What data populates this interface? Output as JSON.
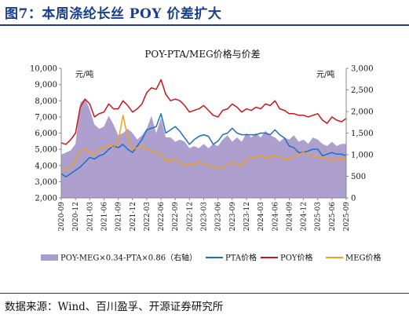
{
  "figure": {
    "title": "图7：本周涤纶长丝 POY 价差扩大",
    "source": "数据来源：Wind、百川盈孚、开源证券研究所"
  },
  "chart_data": {
    "type": "line",
    "title": "POY-PTA/MEG价格与价差",
    "left_unit": "元/吨",
    "right_unit": "元/吨",
    "y_left": {
      "min": 2000,
      "max": 10000,
      "ticks": [
        "2,000",
        "3,000",
        "4,000",
        "5,000",
        "6,000",
        "7,000",
        "8,000",
        "9,000",
        "10,000"
      ]
    },
    "y_right": {
      "min": 0,
      "max": 3000,
      "ticks": [
        "0",
        "500",
        "1,000",
        "1,500",
        "2,000",
        "2,500",
        "3,000"
      ]
    },
    "x_ticks": [
      "2020-09",
      "2020-12",
      "2021-03",
      "2021-06",
      "2021-09",
      "2021-12",
      "2022-03",
      "2022-06",
      "2022-09",
      "2022-12",
      "2023-03",
      "2023-06",
      "2023-09",
      "2023-12",
      "2024-03",
      "2024-06",
      "2024-09",
      "2024-12",
      "2025-03",
      "2025-06",
      "2025-09"
    ],
    "grid": false,
    "legend_position": "bottom",
    "colors": {
      "spread": "#a99bcb",
      "pta": "#1f6fc0",
      "poy": "#c8161d",
      "meg": "#f2a01c"
    },
    "series": [
      {
        "name": "POY-MEG×0.34-PTA×0.86（右轴）",
        "axis": "right",
        "style": "area",
        "x": [
          "2020-09",
          "2020-10",
          "2020-11",
          "2020-12",
          "2021-01",
          "2021-02",
          "2021-03",
          "2021-04",
          "2021-05",
          "2021-06",
          "2021-07",
          "2021-08",
          "2021-09",
          "2021-10",
          "2021-11",
          "2021-12",
          "2022-01",
          "2022-02",
          "2022-03",
          "2022-04",
          "2022-05",
          "2022-06",
          "2022-07",
          "2022-08",
          "2022-09",
          "2022-10",
          "2022-11",
          "2022-12",
          "2023-01",
          "2023-02",
          "2023-03",
          "2023-04",
          "2023-05",
          "2023-06",
          "2023-07",
          "2023-08",
          "2023-09",
          "2023-10",
          "2023-11",
          "2023-12",
          "2024-01",
          "2024-02",
          "2024-03",
          "2024-04",
          "2024-05",
          "2024-06",
          "2024-07",
          "2024-08",
          "2024-09",
          "2024-10",
          "2024-11",
          "2024-12",
          "2025-01",
          "2025-02",
          "2025-03",
          "2025-04",
          "2025-05",
          "2025-06",
          "2025-07",
          "2025-08",
          "2025-09"
        ],
        "values": [
          1000,
          1050,
          1100,
          1250,
          2200,
          2300,
          2050,
          1700,
          1600,
          1650,
          1900,
          1700,
          1450,
          1500,
          1600,
          1500,
          1350,
          1450,
          1600,
          1900,
          1500,
          1850,
          1400,
          1400,
          1300,
          1350,
          1300,
          1150,
          1200,
          1150,
          1250,
          1150,
          1250,
          1200,
          1350,
          1450,
          1300,
          1400,
          1300,
          1500,
          1400,
          1500,
          1400,
          1550,
          1450,
          1400,
          1300,
          1400,
          1350,
          1450,
          1300,
          1350,
          1250,
          1400,
          1350,
          1250,
          1200,
          1300,
          1200,
          1250,
          1250
        ]
      },
      {
        "name": "PTA价格",
        "axis": "left",
        "style": "line",
        "x": [
          "2020-09",
          "2020-10",
          "2020-11",
          "2020-12",
          "2021-01",
          "2021-02",
          "2021-03",
          "2021-04",
          "2021-05",
          "2021-06",
          "2021-07",
          "2021-08",
          "2021-09",
          "2021-10",
          "2021-11",
          "2021-12",
          "2022-01",
          "2022-02",
          "2022-03",
          "2022-04",
          "2022-05",
          "2022-06",
          "2022-07",
          "2022-08",
          "2022-09",
          "2022-10",
          "2022-11",
          "2022-12",
          "2023-01",
          "2023-02",
          "2023-03",
          "2023-04",
          "2023-05",
          "2023-06",
          "2023-07",
          "2023-08",
          "2023-09",
          "2023-10",
          "2023-11",
          "2023-12",
          "2024-01",
          "2024-02",
          "2024-03",
          "2024-04",
          "2024-05",
          "2024-06",
          "2024-07",
          "2024-08",
          "2024-09",
          "2024-10",
          "2024-11",
          "2024-12",
          "2025-01",
          "2025-02",
          "2025-03",
          "2025-04",
          "2025-05",
          "2025-06",
          "2025-07",
          "2025-08",
          "2025-09"
        ],
        "values": [
          3500,
          3300,
          3500,
          3700,
          3900,
          4200,
          4500,
          4400,
          4600,
          4700,
          5000,
          5200,
          5100,
          5300,
          5000,
          4800,
          5200,
          5600,
          6200,
          6300,
          6400,
          7200,
          6000,
          6200,
          6400,
          6100,
          5700,
          5300,
          5600,
          5800,
          5900,
          5800,
          5300,
          5500,
          5900,
          6000,
          6300,
          6000,
          5900,
          5900,
          5900,
          5900,
          6000,
          6000,
          5900,
          6200,
          5900,
          5700,
          5200,
          5100,
          4800,
          4800,
          4900,
          5000,
          5000,
          4600,
          4700,
          4800,
          4700,
          4700,
          4600
        ]
      },
      {
        "name": "POY价格",
        "axis": "left",
        "style": "line",
        "x": [
          "2020-09",
          "2020-10",
          "2020-11",
          "2020-12",
          "2021-01",
          "2021-02",
          "2021-03",
          "2021-04",
          "2021-05",
          "2021-06",
          "2021-07",
          "2021-08",
          "2021-09",
          "2021-10",
          "2021-11",
          "2021-12",
          "2022-01",
          "2022-02",
          "2022-03",
          "2022-04",
          "2022-05",
          "2022-06",
          "2022-07",
          "2022-08",
          "2022-09",
          "2022-10",
          "2022-11",
          "2022-12",
          "2023-01",
          "2023-02",
          "2023-03",
          "2023-04",
          "2023-05",
          "2023-06",
          "2023-07",
          "2023-08",
          "2023-09",
          "2023-10",
          "2023-11",
          "2023-12",
          "2024-01",
          "2024-02",
          "2024-03",
          "2024-04",
          "2024-05",
          "2024-06",
          "2024-07",
          "2024-08",
          "2024-09",
          "2024-10",
          "2024-11",
          "2024-12",
          "2025-01",
          "2025-02",
          "2025-03",
          "2025-04",
          "2025-05",
          "2025-06",
          "2025-07",
          "2025-08",
          "2025-09"
        ],
        "values": [
          5400,
          5300,
          5600,
          6000,
          7600,
          8100,
          7800,
          7000,
          7200,
          7300,
          7800,
          7500,
          7500,
          8000,
          7700,
          7300,
          7500,
          7800,
          8500,
          8800,
          8700,
          9300,
          8400,
          8000,
          8100,
          8000,
          7700,
          7300,
          7400,
          7500,
          7700,
          7400,
          7100,
          7000,
          7400,
          7500,
          7800,
          7600,
          7300,
          7500,
          7400,
          7600,
          7500,
          7800,
          7700,
          8000,
          7500,
          7400,
          7200,
          7200,
          7100,
          7100,
          7000,
          7100,
          7200,
          6800,
          6600,
          7000,
          6800,
          6700,
          6900
        ]
      },
      {
        "name": "MEG价格",
        "axis": "left",
        "style": "line",
        "x": [
          "2020-09",
          "2020-10",
          "2020-11",
          "2020-12",
          "2021-01",
          "2021-02",
          "2021-03",
          "2021-04",
          "2021-05",
          "2021-06",
          "2021-07",
          "2021-08",
          "2021-09",
          "2021-10",
          "2021-11",
          "2021-12",
          "2022-01",
          "2022-02",
          "2022-03",
          "2022-04",
          "2022-05",
          "2022-06",
          "2022-07",
          "2022-08",
          "2022-09",
          "2022-10",
          "2022-11",
          "2022-12",
          "2023-01",
          "2023-02",
          "2023-03",
          "2023-04",
          "2023-05",
          "2023-06",
          "2023-07",
          "2023-08",
          "2023-09",
          "2023-10",
          "2023-11",
          "2023-12",
          "2024-01",
          "2024-02",
          "2024-03",
          "2024-04",
          "2024-05",
          "2024-06",
          "2024-07",
          "2024-08",
          "2024-09",
          "2024-10",
          "2024-11",
          "2024-12",
          "2025-01",
          "2025-02",
          "2025-03",
          "2025-04",
          "2025-05",
          "2025-06",
          "2025-07",
          "2025-08",
          "2025-09"
        ],
        "values": [
          3700,
          3800,
          3900,
          4300,
          4900,
          5000,
          4800,
          4700,
          5000,
          5100,
          5300,
          5100,
          5500,
          7100,
          5700,
          5000,
          5100,
          5200,
          5000,
          4900,
          4800,
          4700,
          4300,
          4300,
          4400,
          4200,
          4000,
          4100,
          4100,
          4200,
          4100,
          4000,
          3900,
          3800,
          3900,
          4000,
          4200,
          4100,
          4000,
          4400,
          4500,
          4500,
          4600,
          4500,
          4500,
          4600,
          4500,
          4400,
          4400,
          4600,
          4700,
          4800,
          4700,
          4600,
          4500,
          4500,
          4400,
          4300,
          4400,
          4400,
          4400
        ]
      }
    ]
  }
}
